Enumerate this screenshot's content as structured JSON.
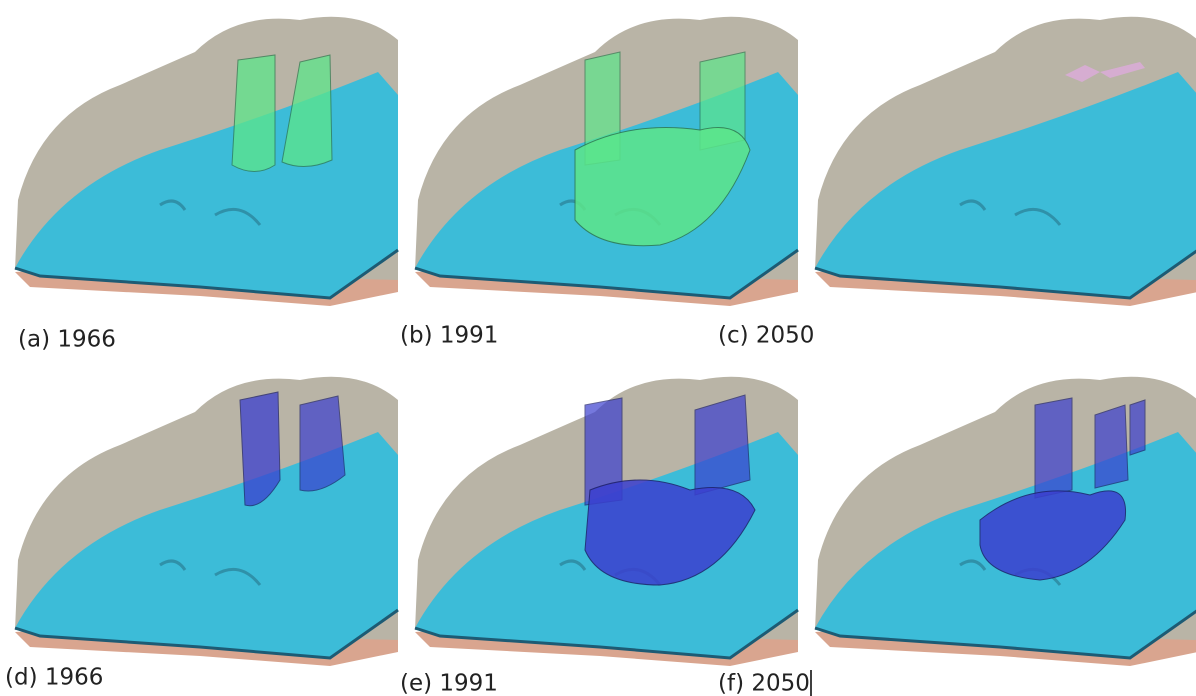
{
  "panels": [
    {
      "label": "(a) 1966"
    },
    {
      "label": "(b) 1991"
    },
    {
      "label": "(c) 2050"
    },
    {
      "label": "(d) 1966"
    },
    {
      "label": "(e) 1991"
    },
    {
      "label": "(f) 2050"
    }
  ]
}
